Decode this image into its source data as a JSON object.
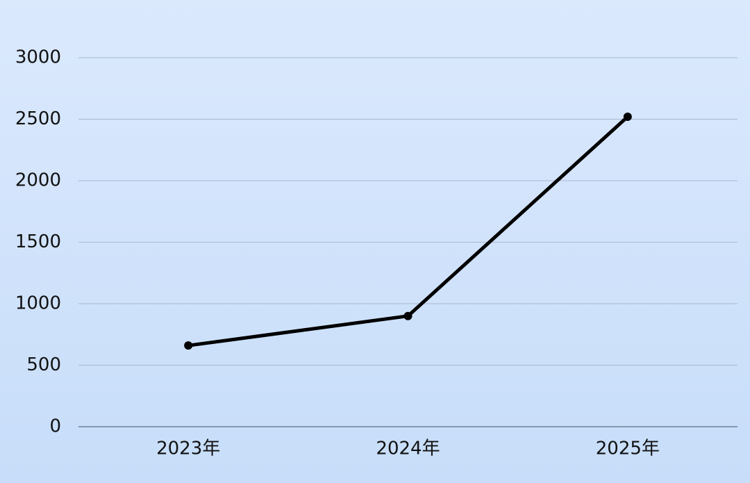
{
  "chart_data": {
    "type": "line",
    "categories": [
      "2023年",
      "2024年",
      "2025年"
    ],
    "series": [
      {
        "values": [
          660,
          900,
          2520
        ],
        "color": "#000000"
      }
    ],
    "ylim": [
      0,
      3000
    ],
    "yticks": [
      0,
      500,
      1000,
      1500,
      2000,
      2500,
      3000
    ],
    "grid": true
  }
}
